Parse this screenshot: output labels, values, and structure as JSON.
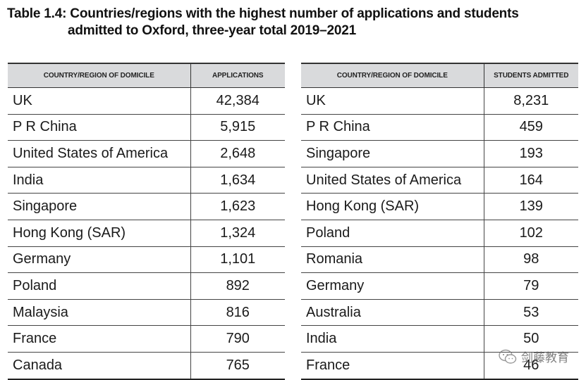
{
  "title": {
    "line1": "Table 1.4: Countries/regions with the highest number of applications and students",
    "line2": "admitted to Oxford, three-year total 2019–2021"
  },
  "applications_table": {
    "headers": [
      "COUNTRY/REGION OF DOMICILE",
      "APPLICATIONS"
    ],
    "rows": [
      {
        "country": "UK",
        "value": "42,384"
      },
      {
        "country": "P R China",
        "value": "5,915"
      },
      {
        "country": "United States of America",
        "value": "2,648"
      },
      {
        "country": "India",
        "value": "1,634"
      },
      {
        "country": "Singapore",
        "value": "1,623"
      },
      {
        "country": "Hong Kong (SAR)",
        "value": "1,324"
      },
      {
        "country": "Germany",
        "value": "1,101"
      },
      {
        "country": "Poland",
        "value": "892"
      },
      {
        "country": "Malaysia",
        "value": "816"
      },
      {
        "country": "France",
        "value": "790"
      },
      {
        "country": "Canada",
        "value": "765"
      }
    ]
  },
  "admitted_table": {
    "headers": [
      "COUNTRY/REGION OF DOMICILE",
      "STUDENTS ADMITTED"
    ],
    "rows": [
      {
        "country": "UK",
        "value": "8,231"
      },
      {
        "country": "P R China",
        "value": "459"
      },
      {
        "country": "Singapore",
        "value": "193"
      },
      {
        "country": "United States of America",
        "value": "164"
      },
      {
        "country": "Hong Kong (SAR)",
        "value": "139"
      },
      {
        "country": "Poland",
        "value": "102"
      },
      {
        "country": "Romania",
        "value": "98"
      },
      {
        "country": "Germany",
        "value": "79"
      },
      {
        "country": "Australia",
        "value": "53"
      },
      {
        "country": "India",
        "value": "50"
      },
      {
        "country": "France",
        "value": "46"
      }
    ]
  },
  "watermark": {
    "text": "剑藤教育",
    "icon": "wechat-logo-icon"
  }
}
